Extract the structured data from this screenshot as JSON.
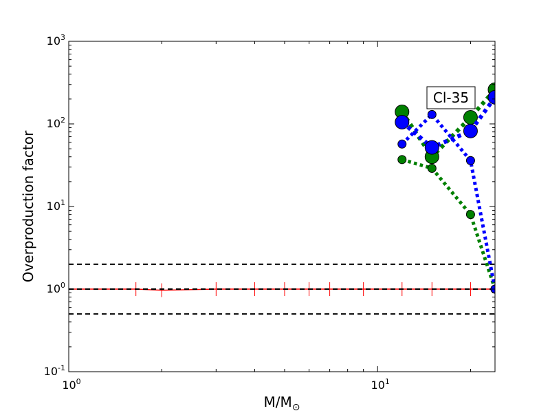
{
  "chart_data": {
    "type": "line",
    "xscale": "log",
    "yscale": "log",
    "xlim": [
      1,
      24
    ],
    "ylim": [
      0.1,
      1000
    ],
    "xlabel": "M/M",
    "xlabel_sub": "⊙",
    "ylabel": "Overproduction factor",
    "annotation": "Cl-35",
    "x_ticks": [
      {
        "value": 1,
        "base": "10",
        "exp": "0"
      },
      {
        "value": 10,
        "base": "10",
        "exp": "1"
      }
    ],
    "y_ticks": [
      {
        "value": 0.1,
        "base": "10",
        "exp": "-1"
      },
      {
        "value": 1,
        "base": "10",
        "exp": "0"
      },
      {
        "value": 10,
        "base": "10",
        "exp": "1"
      },
      {
        "value": 100,
        "base": "10",
        "exp": "2"
      },
      {
        "value": 1000,
        "base": "10",
        "exp": "3"
      }
    ],
    "reference_lines": [
      {
        "y": 2.0,
        "color": "#000000",
        "style": "dashed"
      },
      {
        "y": 1.0,
        "color": "#000000",
        "style": "dashed"
      },
      {
        "y": 0.5,
        "color": "#000000",
        "style": "dashed"
      }
    ],
    "red_reference": {
      "color": "#ff0000",
      "x": [
        1.0,
        1.65,
        2.0,
        3.0,
        4.0,
        5.0,
        6.0,
        7.0,
        9.0,
        12.0,
        15.0,
        20.0,
        24.0
      ],
      "y": [
        1.0,
        1.0,
        0.97,
        1.0,
        1.0,
        1.0,
        1.0,
        1.0,
        1.0,
        1.0,
        1.0,
        1.0,
        1.0
      ]
    },
    "series": [
      {
        "color": "#008000",
        "line_width": 6,
        "marker_size": 10,
        "x": [
          12,
          15,
          20,
          24
        ],
        "y": [
          140,
          40,
          120,
          260
        ]
      },
      {
        "color": "#0000ff",
        "line_width": 6,
        "marker_size": 10,
        "x": [
          12,
          15,
          20,
          24
        ],
        "y": [
          105,
          52,
          82,
          210
        ]
      },
      {
        "color": "#008000",
        "line_width": 5,
        "marker_size": 6,
        "x": [
          12,
          15,
          20,
          24
        ],
        "y": [
          37,
          29,
          8,
          1.0
        ]
      },
      {
        "color": "#0000ff",
        "line_width": 5,
        "marker_size": 6,
        "x": [
          12,
          15,
          20,
          24
        ],
        "y": [
          57,
          130,
          36,
          1.0
        ]
      }
    ]
  }
}
